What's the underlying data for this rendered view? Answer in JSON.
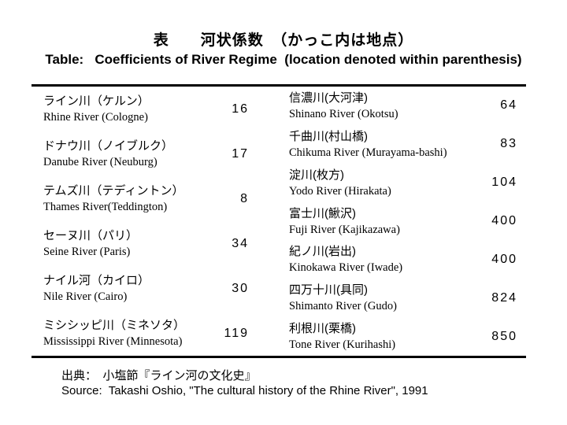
{
  "title": {
    "japanese": "表　　河状係数　（かっこ内は地点）",
    "english": "Table:   Coefficients of River Regime  (location denoted within parenthesis)"
  },
  "table": {
    "left_rows": [
      {
        "jp": "ライン川（ケルン）",
        "en": "Rhine River (Cologne)",
        "value": "16"
      },
      {
        "jp": "ドナウ川（ノイブルク）",
        "en": "Danube River (Neuburg)",
        "value": "17"
      },
      {
        "jp": "テムズ川（テディントン）",
        "en": "Thames River(Teddington)",
        "value": "8"
      },
      {
        "jp": "セーヌ川（パリ）",
        "en": "Seine River (Paris)",
        "value": "34"
      },
      {
        "jp": "ナイル河（カイロ）",
        "en": "Nile River (Cairo)",
        "value": "30"
      },
      {
        "jp": "ミシシッピ川（ミネソタ）",
        "en": "Mississippi River (Minnesota)",
        "value": "119"
      }
    ],
    "right_rows": [
      {
        "jp": "信濃川(大河津)",
        "en": "Shinano River (Okotsu)",
        "value": "64"
      },
      {
        "jp": "千曲川(村山橋)",
        "en": "Chikuma River (Murayama-bashi)",
        "value": "83"
      },
      {
        "jp": "淀川(枚方)",
        "en": "Yodo River (Hirakata)",
        "value": "104"
      },
      {
        "jp": "富士川(鰍沢)",
        "en": "Fuji River (Kajikazawa)",
        "value": "400"
      },
      {
        "jp": "紀ノ川(岩出)",
        "en": "Kinokawa River (Iwade)",
        "value": "400"
      },
      {
        "jp": "四万十川(具同)",
        "en": "Shimanto River (Gudo)",
        "value": "824"
      },
      {
        "jp": "利根川(栗橋)",
        "en": "Tone River (Kurihashi)",
        "value": "850"
      }
    ]
  },
  "source": {
    "japanese": "出典：　小塩節『ライン河の文化史』",
    "english": "Source:  Takashi Oshio, \"The cultural history of the Rhine River\", 1991"
  },
  "colors": {
    "background": "#ffffff",
    "text": "#000000",
    "rule": "#000000"
  }
}
